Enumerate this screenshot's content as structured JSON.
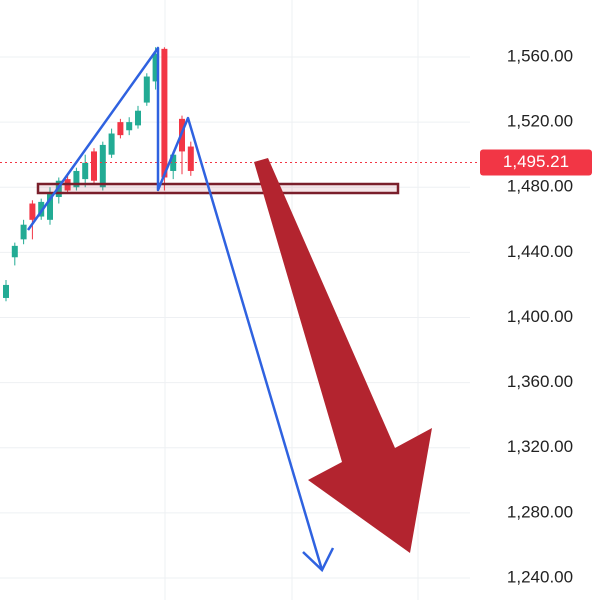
{
  "chart_data": {
    "type": "candlestick",
    "categories": [
      null,
      null,
      null,
      null,
      null,
      null,
      null,
      null,
      null,
      null,
      null,
      null,
      null,
      null,
      null,
      null,
      null,
      null,
      null,
      null,
      null,
      null
    ],
    "open": [
      1412,
      1437,
      1448,
      1470,
      1462,
      1460,
      1474,
      1485,
      1480,
      1485,
      1502,
      1480,
      1500,
      1520,
      1515,
      1518,
      1532,
      1545,
      1565,
      1490,
      1522,
      1505
    ],
    "high": [
      1423,
      1446,
      1460,
      1472,
      1473,
      1480,
      1486,
      1488,
      1492,
      1500,
      1504,
      1508,
      1516,
      1522,
      1523,
      1530,
      1550,
      1566,
      1566,
      1502,
      1524,
      1508
    ],
    "low": [
      1410,
      1432,
      1445,
      1448,
      1460,
      1457,
      1470,
      1476,
      1478,
      1480,
      1482,
      1478,
      1498,
      1510,
      1512,
      1516,
      1530,
      1540,
      1478,
      1485,
      1488,
      1487
    ],
    "close": [
      1420,
      1444,
      1457,
      1460,
      1471,
      1476,
      1484,
      1478,
      1490,
      1495,
      1484,
      1506,
      1513,
      1512,
      1520,
      1527,
      1548,
      1562,
      1486,
      1500,
      1502,
      1490
    ],
    "up_color": "#22ab94",
    "down_color": "#f23645",
    "ylim": [
      1226.5,
      1595
    ],
    "yticks": [
      {
        "value": 1240,
        "label": "1,240.00"
      },
      {
        "value": 1280,
        "label": "1,280.00"
      },
      {
        "value": 1320,
        "label": "1,320.00"
      },
      {
        "value": 1360,
        "label": "1,360.00"
      },
      {
        "value": 1400,
        "label": "1,400.00"
      },
      {
        "value": 1440,
        "label": "1,440.00"
      },
      {
        "value": 1480,
        "label": "1,480.00"
      },
      {
        "value": 1520,
        "label": "1,520.00"
      },
      {
        "value": 1560,
        "label": "1,560.00"
      }
    ],
    "grid": true,
    "current_price": 1495.21,
    "current_price_label": "1,495.21",
    "current_price_color": "#f23645"
  }
}
